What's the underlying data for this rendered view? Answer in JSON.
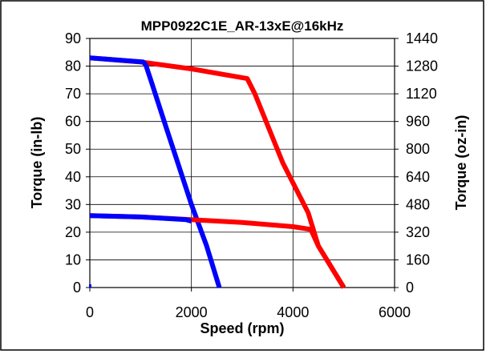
{
  "chart_data": {
    "type": "line",
    "title": "MPP0922C1E_AR-13xE@16kHz",
    "xlabel": "Speed (rpm)",
    "ylabel": "Torque (in-lb)",
    "ylabel_right": "Torque (oz-in)",
    "xlim": [
      0,
      6000
    ],
    "ylim": [
      0,
      90
    ],
    "ylim_right": [
      0,
      1440
    ],
    "x_ticks": [
      "0",
      "2000",
      "4000",
      "6000"
    ],
    "y_ticks": [
      "0",
      "10",
      "20",
      "30",
      "40",
      "50",
      "60",
      "70",
      "80",
      "90"
    ],
    "y_right_ticks": [
      "0",
      "160",
      "320",
      "480",
      "640",
      "800",
      "960",
      "1120",
      "1280",
      "1440"
    ],
    "grid": true,
    "series": [
      {
        "color": "#ff0000",
        "x": [
          0,
          1000,
          2000,
          3100,
          3250,
          3800,
          4300,
          4500,
          5000
        ],
        "y": [
          83,
          81.5,
          79,
          75.5,
          70,
          45,
          27,
          15,
          0
        ]
      },
      {
        "color": "#0000ff",
        "x": [
          0,
          1050,
          1100,
          1200,
          1500,
          2000,
          2300,
          2550
        ],
        "y": [
          83,
          81.5,
          80.5,
          75,
          58,
          30,
          15,
          0
        ]
      },
      {
        "color": "#ff0000",
        "x": [
          0,
          1000,
          2000,
          3000,
          4000,
          4350,
          4500,
          5000
        ],
        "y": [
          26,
          25.5,
          24.5,
          23.5,
          22,
          21,
          15,
          0
        ]
      },
      {
        "color": "#0000ff",
        "x": [
          0,
          1000,
          1900,
          2000
        ],
        "y": [
          26,
          25.5,
          24.5,
          24
        ]
      }
    ]
  }
}
